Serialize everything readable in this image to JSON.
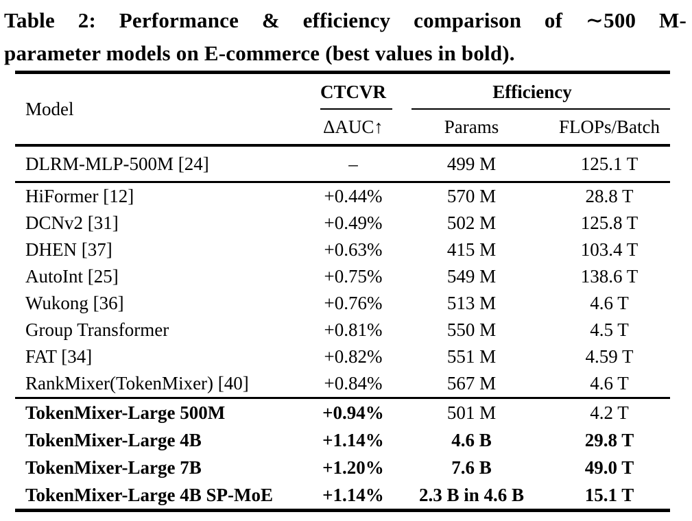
{
  "page": {
    "background": "#ffffff",
    "text_color": "#000000"
  },
  "caption": {
    "line1": "Table 2: Performance & efficiency comparison of ∼500 M-",
    "line2": "parameter models on E-commerce (best values in bold)."
  },
  "table": {
    "columns": {
      "model": "Model",
      "ctcvr": "CTCVR",
      "efficiency": "Efficiency",
      "delta_auc": "ΔAUC↑",
      "params": "Params",
      "flops": "FLOPs/Batch"
    },
    "rows": [
      {
        "model": "DLRM-MLP-500M [24]",
        "delta_auc": "–",
        "params": "499 M",
        "flops": "125.1 T"
      },
      {
        "model": "HiFormer [12]",
        "delta_auc": "+0.44%",
        "params": "570 M",
        "flops": "28.8 T"
      },
      {
        "model": "DCNv2 [31]",
        "delta_auc": "+0.49%",
        "params": "502 M",
        "flops": "125.8 T"
      },
      {
        "model": "DHEN [37]",
        "delta_auc": "+0.63%",
        "params": "415 M",
        "flops": "103.4 T"
      },
      {
        "model": "AutoInt [25]",
        "delta_auc": "+0.75%",
        "params": "549 M",
        "flops": "138.6 T"
      },
      {
        "model": "Wukong [36]",
        "delta_auc": "+0.76%",
        "params": "513 M",
        "flops": "4.6 T"
      },
      {
        "model": "Group Transformer",
        "delta_auc": "+0.81%",
        "params": "550 M",
        "flops": "4.5 T"
      },
      {
        "model": "FAT [34]",
        "delta_auc": "+0.82%",
        "params": "551 M",
        "flops": "4.59 T"
      },
      {
        "model": "RankMixer(TokenMixer) [40]",
        "delta_auc": "+0.84%",
        "params": "567 M",
        "flops": "4.6 T"
      },
      {
        "model": "TokenMixer-Large 500M",
        "delta_auc": "+0.94%",
        "params": "501 M",
        "flops": "4.2 T"
      },
      {
        "model": "TokenMixer-Large 4B",
        "delta_auc": "+1.14%",
        "params": "4.6 B",
        "flops": "29.8 T"
      },
      {
        "model": "TokenMixer-Large 7B",
        "delta_auc": "+1.20%",
        "params": "7.6 B",
        "flops": "49.0 T"
      },
      {
        "model": "TokenMixer-Large 4B SP-MoE",
        "delta_auc": "+1.14%",
        "params": "2.3 B in 4.6 B",
        "flops": "15.1 T"
      }
    ]
  }
}
